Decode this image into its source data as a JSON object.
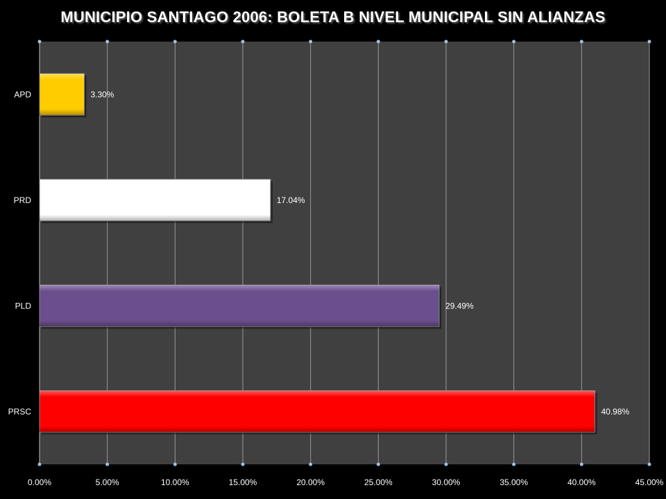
{
  "chart_data": {
    "type": "bar",
    "orientation": "horizontal",
    "title": "MUNICIPIO SANTIAGO 2006: BOLETA B NIVEL MUNICIPAL SIN ALIANZAS",
    "categories": [
      "APD",
      "PRD",
      "PLD",
      "PRSC"
    ],
    "values": [
      3.3,
      17.04,
      29.49,
      40.98
    ],
    "data_labels": [
      "3.30%",
      "17.04%",
      "29.49%",
      "40.98%"
    ],
    "bar_colors": [
      "#FFCC00",
      "#FFFFFF",
      "#6B4E8E",
      "#FF0000"
    ],
    "xlim": [
      0,
      45
    ],
    "x_ticks": [
      0,
      5,
      10,
      15,
      20,
      25,
      30,
      35,
      40,
      45
    ],
    "x_tick_labels": [
      "0.00%",
      "5.00%",
      "10.00%",
      "15.00%",
      "20.00%",
      "25.00%",
      "30.00%",
      "35.00%",
      "40.00%",
      "45.00%"
    ],
    "xlabel": "",
    "ylabel": "",
    "grid": true,
    "legend": "none",
    "plot_background": "#404040",
    "page_background": "#000000"
  }
}
